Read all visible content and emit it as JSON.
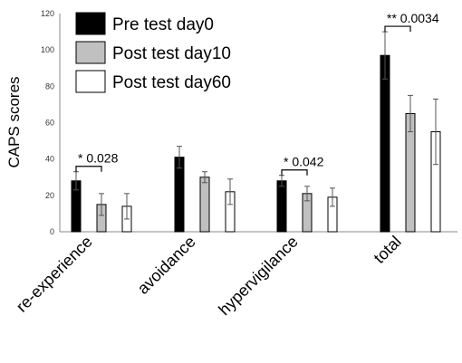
{
  "chart_data": {
    "type": "bar",
    "ylabel": "CAPS scores",
    "xlabel": "",
    "ylim": [
      0,
      120
    ],
    "yticks": [
      0,
      20,
      40,
      60,
      80,
      100,
      120
    ],
    "categories": [
      "re-experience",
      "avoidance",
      "hypervigilance",
      "total"
    ],
    "series": [
      {
        "name": "Pre test day0",
        "color": "#000000",
        "values": [
          28,
          41,
          28,
          97
        ],
        "errors": [
          5,
          6,
          3,
          13
        ]
      },
      {
        "name": "Post test day10",
        "color": "#c0c0c0",
        "values": [
          15,
          30,
          21,
          65
        ],
        "errors": [
          6,
          3,
          4,
          10
        ]
      },
      {
        "name": "Post test day60",
        "color": "#ffffff",
        "values": [
          14,
          22,
          19,
          55
        ],
        "errors": [
          7,
          7,
          5,
          18
        ]
      }
    ],
    "legend_position": "top-left",
    "grid": false,
    "annotations": [
      {
        "text": "* 0.028",
        "category": 0,
        "from_series": 0,
        "to_series": 1
      },
      {
        "text": "* 0.042",
        "category": 2,
        "from_series": 0,
        "to_series": 1
      },
      {
        "text": "** 0.0034",
        "category": 3,
        "from_series": 0,
        "to_series": 1
      }
    ]
  }
}
